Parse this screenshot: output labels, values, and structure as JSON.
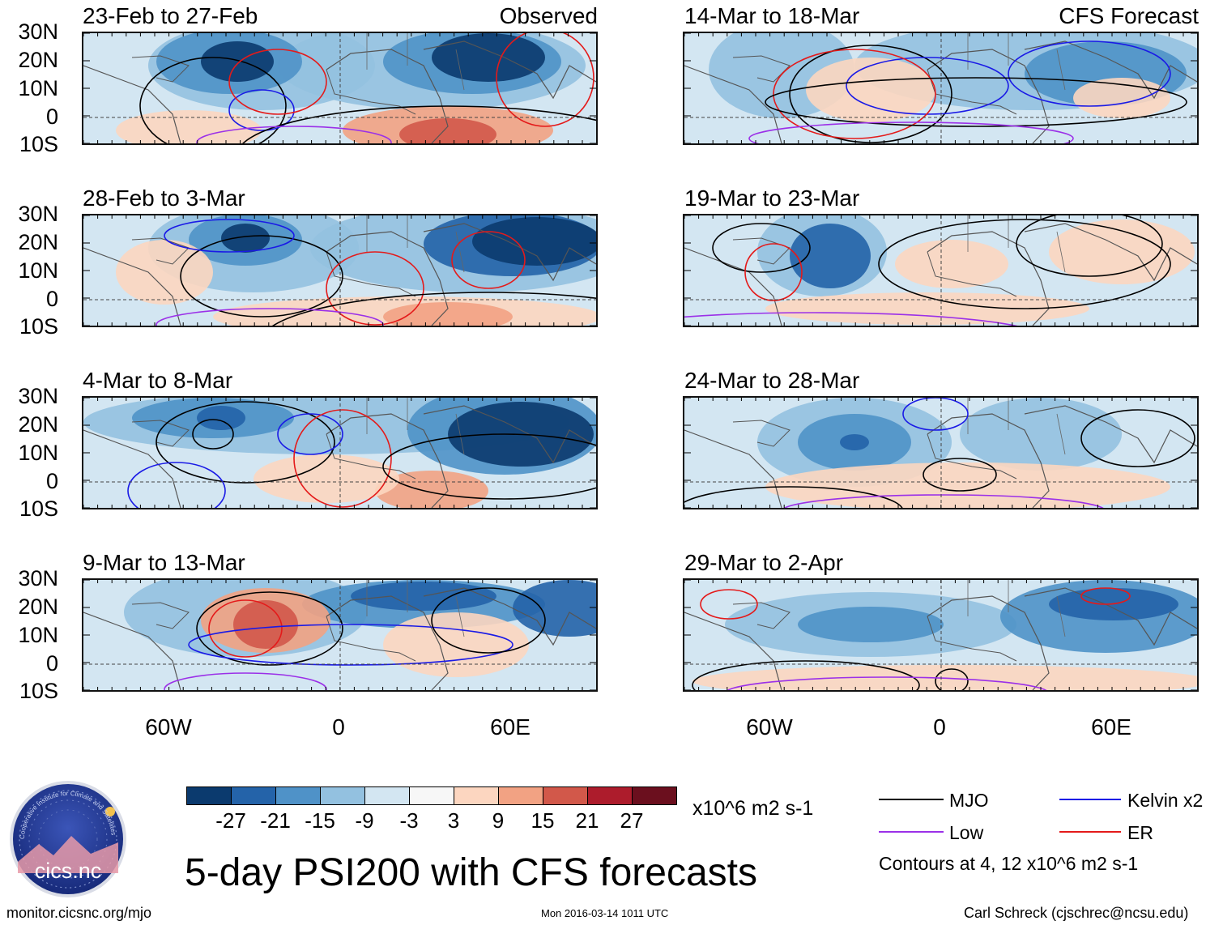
{
  "figure_title": "5-day PSI200 with CFS forecasts",
  "left_column_label": "Observed",
  "right_column_label": "CFS Forecast",
  "panels": {
    "left": [
      {
        "title": "23-Feb to 27-Feb"
      },
      {
        "title": "28-Feb to 3-Mar"
      },
      {
        "title": "4-Mar to 8-Mar"
      },
      {
        "title": "9-Mar to 13-Mar"
      }
    ],
    "right": [
      {
        "title": "14-Mar to 18-Mar"
      },
      {
        "title": "19-Mar to 23-Mar"
      },
      {
        "title": "24-Mar to 28-Mar"
      },
      {
        "title": "29-Mar to 2-Apr"
      }
    ]
  },
  "lat_labels": [
    "30N",
    "20N",
    "10N",
    "0",
    "10S"
  ],
  "lon_labels": [
    "60W",
    "0",
    "60E"
  ],
  "colorbar": {
    "units": "x10^6 m2 s-1",
    "labels": [
      "-27",
      "-21",
      "-15",
      "-9",
      "-3",
      "3",
      "9",
      "15",
      "21",
      "27"
    ],
    "colors": [
      "#0b3a6e",
      "#2463a9",
      "#4f92c8",
      "#93c1e0",
      "#d3e6f2",
      "#f7f7f7",
      "#fcd6c0",
      "#f2a283",
      "#d2584a",
      "#ad1c2c",
      "#6b0f1e"
    ]
  },
  "legend": {
    "items": [
      {
        "label": "MJO",
        "color": "#000000"
      },
      {
        "label": "Kelvin x2",
        "color": "#1a1ae6"
      },
      {
        "label": "Low",
        "color": "#9b30e8"
      },
      {
        "label": "ER",
        "color": "#e41a1a"
      }
    ],
    "note": "Contours at 4, 12 x10^6 m2 s-1"
  },
  "logo": {
    "text": "cics.nc",
    "ring_text": "Cooperative Institute for Climate and Satellites"
  },
  "footer": {
    "url": "monitor.cicsnc.org/mjo",
    "timestamp": "Mon 2016-03-14 1011 UTC",
    "author": "Carl Schreck (cjschrec@ncsu.edu)"
  }
}
